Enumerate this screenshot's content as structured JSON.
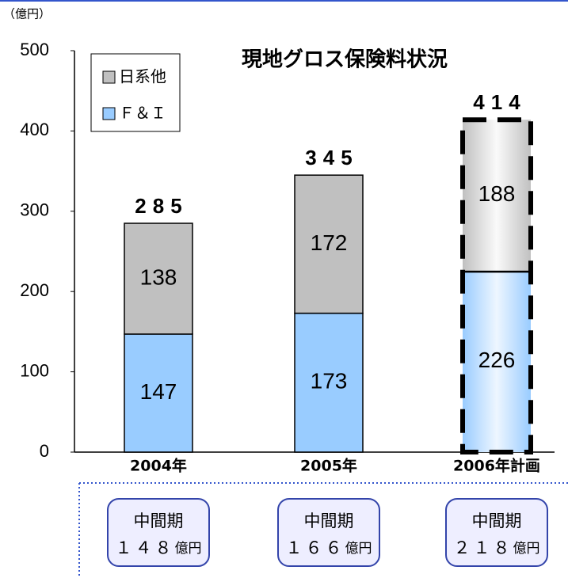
{
  "chart_data": {
    "type": "bar",
    "stacked": true,
    "title": "現地グロス保険料状況",
    "unit_label": "（億円）",
    "categories": [
      "2004年",
      "2005年",
      "2006年計画"
    ],
    "series": [
      {
        "name": "Ｆ＆Ｉ",
        "color": "#99ccff",
        "values": [
          147,
          173,
          226
        ]
      },
      {
        "name": "日系他",
        "color": "#c0c0c0",
        "values": [
          138,
          172,
          188
        ]
      }
    ],
    "totals": [
      285,
      345,
      414
    ],
    "ylim": [
      0,
      500
    ],
    "yticks": [
      0,
      100,
      200,
      300,
      400,
      500
    ],
    "grid": false,
    "interim": {
      "label": "中間期",
      "values": [
        148,
        166,
        218
      ],
      "value_labels": [
        "１４８",
        "１６６",
        "２１８"
      ],
      "unit": "億円"
    }
  }
}
